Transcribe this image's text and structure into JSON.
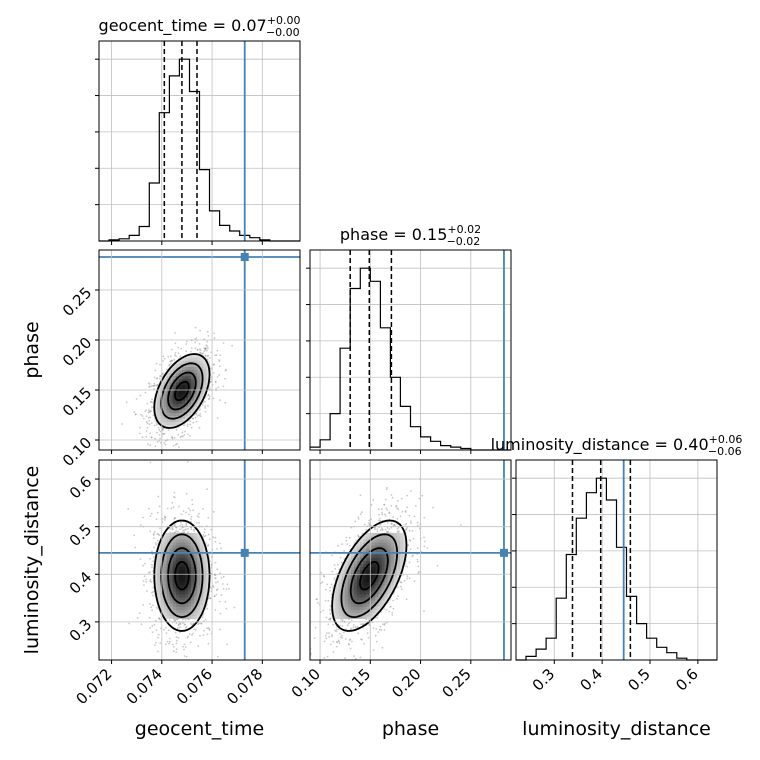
{
  "colors": {
    "truth": "#4682b4",
    "line": "#000000",
    "grid": "#c0c0c0",
    "points": "#888888"
  },
  "chart_data": {
    "type": "corner",
    "parameters": [
      "geocent_time",
      "phase",
      "luminosity_distance"
    ],
    "truths": {
      "geocent_time": 0.0773,
      "phase": 0.283,
      "luminosity_distance": 0.445
    },
    "titles": [
      {
        "param": "geocent_time",
        "prefix": "geocent_time = ",
        "median": "0.07",
        "plus": "+0.00",
        "minus": "−0.00"
      },
      {
        "param": "phase",
        "prefix": "phase = ",
        "median": "0.15",
        "plus": "+0.02",
        "minus": "−0.02"
      },
      {
        "param": "luminosity_distance",
        "prefix": "luminosity_distance = ",
        "median": "0.40",
        "plus": "+0.06",
        "minus": "−0.06"
      }
    ],
    "axes": {
      "geocent_time": {
        "range": [
          0.0715,
          0.0795
        ],
        "ticks": [
          0.072,
          0.074,
          0.076,
          0.078
        ],
        "tick_labels": [
          "0.072",
          "0.074",
          "0.076",
          "0.078"
        ],
        "label": "geocent_time"
      },
      "phase": {
        "range": [
          0.09,
          0.29
        ],
        "ticks": [
          0.1,
          0.15,
          0.2,
          0.25
        ],
        "tick_labels": [
          "0.10",
          "0.15",
          "0.20",
          "0.25"
        ],
        "label": "phase"
      },
      "luminosity_distance": {
        "range": [
          0.22,
          0.64
        ],
        "ticks": [
          0.3,
          0.4,
          0.5,
          0.6
        ],
        "tick_labels": [
          "0.3",
          "0.4",
          "0.5",
          "0.6"
        ],
        "label": "luminosity_distance"
      }
    },
    "histograms": [
      {
        "param": "geocent_time",
        "quantiles": [
          0.0741,
          0.0748,
          0.0754
        ],
        "bin_edges": [
          0.0715,
          0.0719,
          0.0723,
          0.0727,
          0.0731,
          0.0735,
          0.0739,
          0.0743,
          0.0747,
          0.0751,
          0.0755,
          0.0759,
          0.0763,
          0.0767,
          0.0771,
          0.0775,
          0.0779,
          0.0783,
          0.0787,
          0.0791,
          0.0795
        ],
        "counts": [
          0,
          1,
          2,
          5,
          13,
          52,
          115,
          148,
          163,
          134,
          64,
          27,
          14,
          9,
          5,
          3,
          1,
          0,
          0,
          0
        ]
      },
      {
        "param": "phase",
        "quantiles": [
          0.13,
          0.149,
          0.171
        ],
        "bin_edges": [
          0.09,
          0.1,
          0.11,
          0.12,
          0.13,
          0.14,
          0.15,
          0.16,
          0.17,
          0.18,
          0.19,
          0.2,
          0.21,
          0.22,
          0.23,
          0.24,
          0.25,
          0.26,
          0.27,
          0.28,
          0.29
        ],
        "counts": [
          2,
          7,
          25,
          70,
          111,
          125,
          116,
          84,
          50,
          30,
          16,
          9,
          6,
          3,
          2,
          1,
          0,
          0,
          0,
          0
        ]
      },
      {
        "param": "luminosity_distance",
        "quantiles": [
          0.338,
          0.397,
          0.459
        ],
        "bin_edges": [
          0.22,
          0.241,
          0.262,
          0.283,
          0.304,
          0.325,
          0.346,
          0.367,
          0.388,
          0.409,
          0.43,
          0.451,
          0.472,
          0.493,
          0.514,
          0.535,
          0.556,
          0.577,
          0.598,
          0.619,
          0.64
        ],
        "counts": [
          0,
          2,
          6,
          12,
          34,
          58,
          78,
          92,
          100,
          88,
          62,
          35,
          20,
          12,
          7,
          4,
          1,
          0,
          0,
          0
        ]
      }
    ],
    "contours": [
      {
        "x": "geocent_time",
        "y": "phase",
        "center": [
          0.0748,
          0.149
        ],
        "sigma": [
          0.00055,
          0.0185
        ],
        "rho": 0.45
      },
      {
        "x": "geocent_time",
        "y": "luminosity_distance",
        "center": [
          0.0748,
          0.397
        ],
        "sigma": [
          0.00055,
          0.058
        ],
        "rho": 0.0
      },
      {
        "x": "phase",
        "y": "luminosity_distance",
        "center": [
          0.149,
          0.397
        ],
        "sigma": [
          0.0185,
          0.058
        ],
        "rho": 0.55
      }
    ]
  }
}
